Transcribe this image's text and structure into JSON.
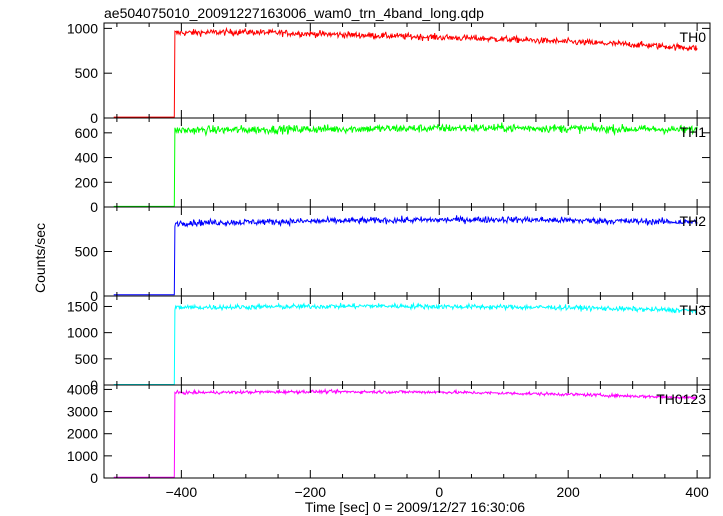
{
  "title": "ae504075010_20091227163006_wam0_trn_4band_long.qdp",
  "ylabel": "Counts/sec",
  "xlabel": "Time [sec] 0 = 2009/12/27 16:30:06",
  "chart_data": {
    "type": "line",
    "xlim": [
      -520,
      420
    ],
    "x_ticks": [
      -400,
      -200,
      0,
      200,
      400
    ],
    "x_tick_labels": [
      "−400",
      "−200",
      "0",
      "200",
      "400"
    ],
    "trigger_x": -410,
    "panels": [
      {
        "name": "TH0",
        "color": "#ff0000",
        "ylim": [
          0,
          1060
        ],
        "yticks": [
          0,
          500,
          1000
        ],
        "pre_level": 10,
        "levels": [
          [
            -410,
            950
          ],
          [
            -300,
            960
          ],
          [
            -100,
            920
          ],
          [
            100,
            880
          ],
          [
            300,
            820
          ],
          [
            400,
            780
          ]
        ],
        "noise": 30
      },
      {
        "name": "TH1",
        "color": "#00ff00",
        "ylim": [
          0,
          720
        ],
        "yticks": [
          0,
          200,
          400,
          600
        ],
        "pre_level": 5,
        "levels": [
          [
            -410,
            620
          ],
          [
            -200,
            630
          ],
          [
            100,
            640
          ],
          [
            400,
            625
          ]
        ],
        "noise": 28
      },
      {
        "name": "TH2",
        "color": "#0000ff",
        "ylim": [
          0,
          1000
        ],
        "yticks": [
          0,
          500
        ],
        "pre_level": 15,
        "levels": [
          [
            -410,
            820
          ],
          [
            -100,
            850
          ],
          [
            100,
            860
          ],
          [
            400,
            830
          ]
        ],
        "noise": 30
      },
      {
        "name": "TH3",
        "color": "#00ffff",
        "ylim": [
          0,
          1700
        ],
        "yticks": [
          0,
          500,
          1000,
          1500
        ],
        "pre_level": 10,
        "levels": [
          [
            -410,
            1480
          ],
          [
            -100,
            1510
          ],
          [
            200,
            1480
          ],
          [
            400,
            1420
          ]
        ],
        "noise": 40
      },
      {
        "name": "TH0123",
        "color": "#ff00ff",
        "ylim": [
          0,
          4200
        ],
        "yticks": [
          0,
          1000,
          2000,
          3000,
          4000
        ],
        "pre_level": 30,
        "levels": [
          [
            -410,
            3850
          ],
          [
            -200,
            3900
          ],
          [
            0,
            3880
          ],
          [
            200,
            3780
          ],
          [
            400,
            3620
          ]
        ],
        "noise": 60
      }
    ]
  }
}
